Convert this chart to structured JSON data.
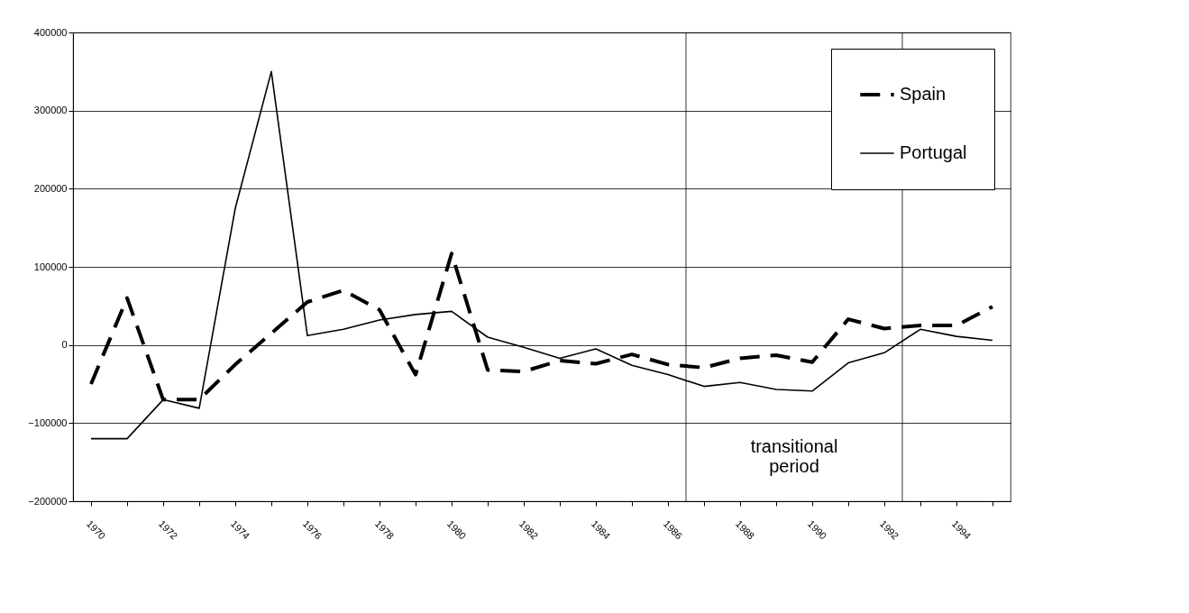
{
  "chart_data": {
    "type": "line",
    "categories": [
      "1970",
      null,
      "1972",
      null,
      "1974",
      null,
      "1976",
      null,
      "1978",
      null,
      "1980",
      null,
      "1982",
      null,
      "1984",
      null,
      "1986",
      null,
      "1988",
      null,
      "1990",
      null,
      "1992",
      null,
      "1994",
      null
    ],
    "series": [
      {
        "name": "Spain",
        "color": "#000000",
        "line_style": "dashed",
        "values": [
          -50000,
          60000,
          -70000,
          -70000,
          -25000,
          15000,
          55000,
          70000,
          45000,
          -38000,
          117000,
          -32000,
          -34000,
          -20000,
          -24000,
          -12000,
          -25000,
          -29000,
          -17000,
          -13000,
          -22000,
          33000,
          21000,
          25000,
          25000,
          49000
        ]
      },
      {
        "name": "Portugal",
        "color": "#000000",
        "line_style": "solid",
        "values": [
          -120000,
          -120000,
          -70000,
          -81000,
          175000,
          350000,
          12000,
          20000,
          32000,
          39000,
          43000,
          10000,
          -3000,
          -17000,
          -5000,
          -26000,
          -38000,
          -53000,
          -48000,
          -57000,
          -59000,
          -23000,
          -10000,
          20000,
          11000,
          6000
        ]
      }
    ],
    "ylim": [
      -200000,
      400000
    ],
    "yticks": [
      -200000,
      -100000,
      0,
      100000,
      200000,
      300000,
      400000
    ],
    "annotations": [
      "transitional period"
    ],
    "grid": "y",
    "legend": "top right"
  }
}
